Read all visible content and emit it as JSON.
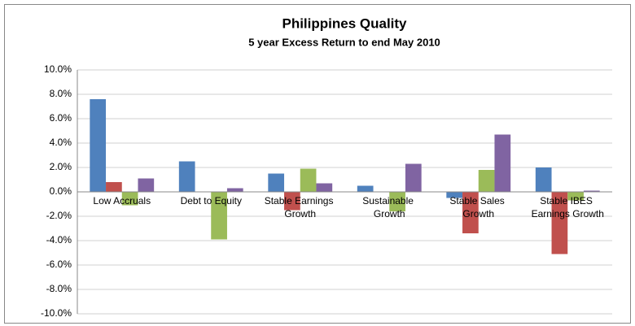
{
  "chart_data": {
    "type": "bar",
    "title": "Philippines Quality",
    "subtitle": "5 year Excess Return to end May 2010",
    "categories": [
      "Low Accruals",
      "Debt to Equity",
      "Stable Earnings Growth",
      "Sustainable Growth",
      "Stable Sales Growth",
      "Stable IBES Earnings Growth"
    ],
    "series": [
      {
        "color": "#4f81bd",
        "values": [
          7.6,
          2.5,
          1.5,
          0.5,
          -0.5,
          2.0
        ]
      },
      {
        "color": "#c0504d",
        "values": [
          0.8,
          0,
          -1.5,
          0,
          -3.4,
          -5.1
        ]
      },
      {
        "color": "#9bbb59",
        "values": [
          -1.1,
          -3.9,
          1.9,
          -1.6,
          1.8,
          -0.7
        ]
      },
      {
        "color": "#8064a2",
        "values": [
          1.1,
          0.3,
          0.7,
          2.3,
          4.7,
          0.1
        ]
      }
    ],
    "ylim": [
      -10,
      10
    ],
    "yticks": [
      {
        "value": -10,
        "label": "-10.0%"
      },
      {
        "value": -8,
        "label": "-8.0%"
      },
      {
        "value": -6,
        "label": "-6.0%"
      },
      {
        "value": -4,
        "label": "-4.0%"
      },
      {
        "value": -2,
        "label": "-2.0%"
      },
      {
        "value": 0,
        "label": "0.0%"
      },
      {
        "value": 2,
        "label": "2.0%"
      },
      {
        "value": 4,
        "label": "4.0%"
      },
      {
        "value": 6,
        "label": "6.0%"
      },
      {
        "value": 8,
        "label": "8.0%"
      },
      {
        "value": 10,
        "label": "10.0%"
      }
    ],
    "grid": true
  }
}
